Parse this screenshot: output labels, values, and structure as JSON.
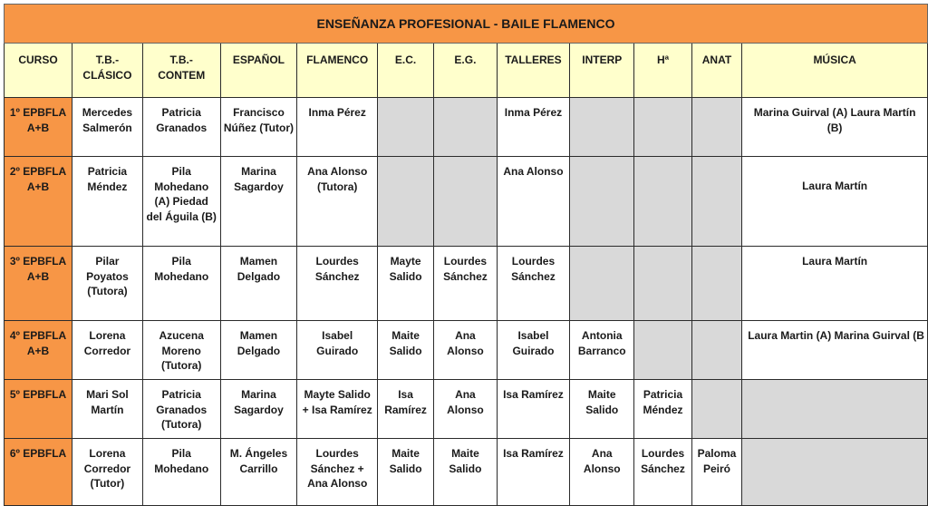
{
  "title": "ENSEÑANZA PROFESIONAL - BAILE FLAMENCO",
  "columns": [
    "CURSO",
    "T.B.- CLÁSICO",
    "T.B.- CONTEM",
    "ESPAÑOL",
    "FLAMENCO",
    "E.C.",
    "E.G.",
    "TALLERES",
    "INTERP",
    "Hª",
    "ANAT",
    "MÚSICA"
  ],
  "colors": {
    "header_orange": "#f79646",
    "column_header_yellow": "#ffffcc",
    "empty_cell_gray": "#d9d9d9"
  },
  "rows": [
    {
      "curso": "1º EPBFLA A+B",
      "cells": [
        "Mercedes Salmerón",
        "Patricia Granados",
        "Francisco Núñez (Tutor)",
        "Inma Pérez",
        null,
        null,
        "Inma Pérez",
        null,
        null,
        null,
        "Marina Guirval (A) Laura Martín (B)"
      ]
    },
    {
      "curso": "2º EPBFLA A+B",
      "cells": [
        "Patricia Méndez",
        "Pila Mohedano (A) Piedad del Águila (B)",
        "Marina Sagardoy",
        "Ana Alonso (Tutora)",
        null,
        null,
        "Ana Alonso",
        null,
        null,
        null,
        "Laura Martín"
      ]
    },
    {
      "curso": "3º EPBFLA A+B",
      "cells": [
        "Pilar Poyatos (Tutora)",
        "Pila Mohedano",
        "Mamen Delgado",
        "Lourdes Sánchez",
        "Mayte Salido",
        "Lourdes Sánchez",
        "Lourdes Sánchez",
        null,
        null,
        null,
        "Laura Martín"
      ]
    },
    {
      "curso": "4º EPBFLA A+B",
      "cells": [
        "Lorena Corredor",
        "Azucena Moreno (Tutora)",
        "Mamen Delgado",
        "Isabel Guirado",
        "Maite Salido",
        "Ana Alonso",
        "Isabel Guirado",
        "Antonia Barranco",
        null,
        null,
        "Laura Martin (A) Marina Guirval (B"
      ]
    },
    {
      "curso": "5º EPBFLA",
      "cells": [
        "Mari Sol Martín",
        "Patricia Granados (Tutora)",
        "Marina Sagardoy",
        "Mayte Salido + Isa Ramírez",
        "Isa Ramírez",
        "Ana Alonso",
        "Isa Ramírez",
        "Maite Salido",
        "Patricia Méndez",
        null,
        null
      ]
    },
    {
      "curso": "6º EPBFLA",
      "cells": [
        "Lorena Corredor (Tutor)",
        "Pila Mohedano",
        "M. Ángeles Carrillo",
        "Lourdes Sánchez + Ana Alonso",
        "Maite Salido",
        "Maite Salido",
        "Isa Ramírez",
        "Ana Alonso",
        "Lourdes Sánchez",
        "Paloma Peiró",
        null
      ]
    }
  ]
}
